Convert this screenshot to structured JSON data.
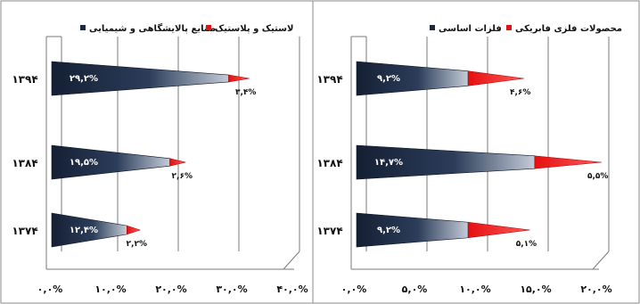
{
  "chart_data": [
    {
      "type": "bar",
      "title": "",
      "xlim": [
        0,
        20
      ],
      "ticks": [
        "۰,۰%",
        "۵,۰%",
        "۱۰,۰%",
        "۱۵,۰%",
        "۲۰,۰%"
      ],
      "categories": [
        "۱۳۷۴",
        "۱۳۸۴",
        "۱۳۹۴"
      ],
      "series": [
        {
          "name": "فلزات اساسی",
          "color": "#1a2a42",
          "values": [
            9.2,
            14.7,
            9.2
          ],
          "labels": [
            "۹,۲%",
            "۱۴,۷%",
            "۹,۲%"
          ]
        },
        {
          "name": "محصولات فلزی فابریکی",
          "color": "#e01414",
          "values": [
            5.1,
            5.5,
            4.6
          ],
          "labels": [
            "۵,۱%",
            "۵,۵%",
            "۴,۶%"
          ]
        }
      ]
    },
    {
      "type": "bar",
      "title": "",
      "xlim": [
        0,
        40
      ],
      "ticks": [
        "۰,۰%",
        "۱۰,۰%",
        "۲۰,۰%",
        "۳۰,۰%",
        "۴۰,۰%"
      ],
      "categories": [
        "۱۳۷۴",
        "۱۳۸۴",
        "۱۳۹۴"
      ],
      "series": [
        {
          "name": "صنایع پالایشگاهی و شیمیایی",
          "color": "#1a2a42",
          "values": [
            12.4,
            19.5,
            29.2
          ],
          "labels": [
            "۱۲,۴%",
            "۱۹,۵%",
            "۲۹,۲%"
          ]
        },
        {
          "name": "لاستیک و پلاستیک",
          "color": "#e01414",
          "values": [
            2.2,
            2.6,
            3.4
          ],
          "labels": [
            "۲,۲%",
            "۲,۶%",
            "۳,۴%"
          ]
        }
      ]
    }
  ]
}
